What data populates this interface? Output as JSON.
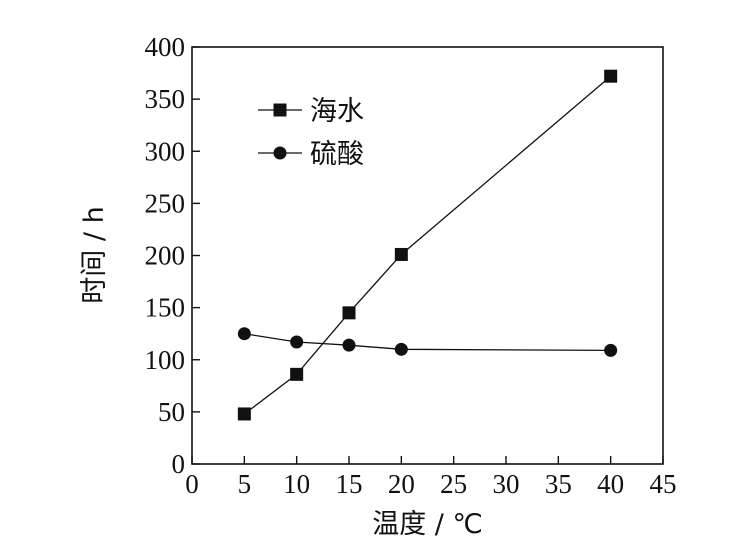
{
  "chart_data": {
    "type": "line",
    "xlabel": "温度 / ℃",
    "ylabel": "时间 / h",
    "xlim": [
      0,
      45
    ],
    "ylim": [
      0,
      400
    ],
    "xticks": [
      0,
      5,
      10,
      15,
      20,
      25,
      30,
      35,
      40,
      45
    ],
    "yticks": [
      0,
      50,
      100,
      150,
      200,
      250,
      300,
      350,
      400
    ],
    "grid": false,
    "legend_position": "top-left",
    "series": [
      {
        "name": "海水",
        "marker": "square",
        "color": "#111111",
        "x": [
          5,
          10,
          15,
          20,
          40
        ],
        "y": [
          48,
          86,
          145,
          201,
          372
        ]
      },
      {
        "name": "硫酸",
        "marker": "circle",
        "color": "#111111",
        "x": [
          5,
          10,
          15,
          20,
          40
        ],
        "y": [
          125,
          117,
          114,
          110,
          109
        ]
      }
    ]
  }
}
